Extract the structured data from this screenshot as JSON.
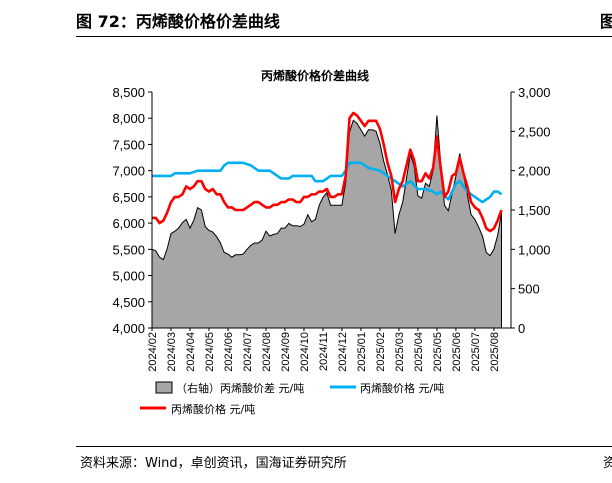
{
  "figure": {
    "header": "图 72：丙烯酸价格价差曲线",
    "right_mark": "图",
    "source": "资料来源：Wind，卓创资讯，国海证券研究所",
    "source_right": "资"
  },
  "chart_data": {
    "type": "line",
    "title": "丙烯酸价格价差曲线",
    "x_labels": [
      "2024/02",
      "2024/03",
      "2024/04",
      "2024/05",
      "2024/06",
      "2024/07",
      "2024/08",
      "2024/09",
      "2024/10",
      "2024/11",
      "2024/12",
      "2025/01",
      "2025/02",
      "2025/03",
      "2025/04",
      "2025/05",
      "2025/06",
      "2025/07",
      "2025/08"
    ],
    "x_range": [
      0,
      18.9
    ],
    "y_left": {
      "min": 4000,
      "max": 8500,
      "ticks": [
        "4,000",
        "4,500",
        "5,000",
        "5,500",
        "6,000",
        "6,500",
        "7,000",
        "7,500",
        "8,000",
        "8,500"
      ]
    },
    "y_right": {
      "min": 0,
      "max": 3000,
      "ticks": [
        "0",
        "500",
        "1,000",
        "1,500",
        "2,000",
        "2,500",
        "3,000"
      ]
    },
    "series": [
      {
        "name": "（右轴）丙烯酸价差 元/吨",
        "type": "area",
        "axis": "right",
        "color": "#a6a6a6",
        "points": [
          [
            0,
            1000
          ],
          [
            0.2,
            980
          ],
          [
            0.4,
            900
          ],
          [
            0.6,
            870
          ],
          [
            0.8,
            1010
          ],
          [
            1.0,
            1200
          ],
          [
            1.2,
            1230
          ],
          [
            1.4,
            1270
          ],
          [
            1.6,
            1340
          ],
          [
            1.8,
            1380
          ],
          [
            2.0,
            1270
          ],
          [
            2.2,
            1370
          ],
          [
            2.4,
            1530
          ],
          [
            2.6,
            1500
          ],
          [
            2.8,
            1290
          ],
          [
            3.0,
            1240
          ],
          [
            3.2,
            1220
          ],
          [
            3.4,
            1160
          ],
          [
            3.6,
            1080
          ],
          [
            3.8,
            960
          ],
          [
            4.0,
            940
          ],
          [
            4.2,
            900
          ],
          [
            4.4,
            930
          ],
          [
            4.6,
            930
          ],
          [
            4.8,
            940
          ],
          [
            5.0,
            1000
          ],
          [
            5.2,
            1050
          ],
          [
            5.4,
            1080
          ],
          [
            5.6,
            1080
          ],
          [
            5.8,
            1120
          ],
          [
            6.0,
            1230
          ],
          [
            6.2,
            1170
          ],
          [
            6.4,
            1190
          ],
          [
            6.6,
            1200
          ],
          [
            6.8,
            1270
          ],
          [
            7.0,
            1270
          ],
          [
            7.2,
            1330
          ],
          [
            7.4,
            1300
          ],
          [
            7.6,
            1300
          ],
          [
            7.8,
            1290
          ],
          [
            8.0,
            1320
          ],
          [
            8.2,
            1440
          ],
          [
            8.4,
            1350
          ],
          [
            8.6,
            1380
          ],
          [
            8.8,
            1560
          ],
          [
            9.0,
            1660
          ],
          [
            9.2,
            1720
          ],
          [
            9.4,
            1560
          ],
          [
            9.6,
            1560
          ],
          [
            9.8,
            1560
          ],
          [
            10.0,
            1560
          ],
          [
            10.2,
            1850
          ],
          [
            10.4,
            2490
          ],
          [
            10.6,
            2640
          ],
          [
            10.8,
            2600
          ],
          [
            11.0,
            2520
          ],
          [
            11.2,
            2440
          ],
          [
            11.4,
            2520
          ],
          [
            11.6,
            2520
          ],
          [
            11.8,
            2500
          ],
          [
            12.0,
            2350
          ],
          [
            12.2,
            2120
          ],
          [
            12.4,
            1950
          ],
          [
            12.6,
            1750
          ],
          [
            12.8,
            1200
          ],
          [
            13.0,
            1440
          ],
          [
            13.2,
            1600
          ],
          [
            13.4,
            1900
          ],
          [
            13.6,
            2210
          ],
          [
            13.8,
            2060
          ],
          [
            14.0,
            1680
          ],
          [
            14.2,
            1650
          ],
          [
            14.4,
            1840
          ],
          [
            14.6,
            1800
          ],
          [
            14.8,
            2000
          ],
          [
            15.0,
            2700
          ],
          [
            15.2,
            2100
          ],
          [
            15.4,
            1560
          ],
          [
            15.6,
            1490
          ],
          [
            15.8,
            1710
          ],
          [
            16.0,
            1930
          ],
          [
            16.2,
            2220
          ],
          [
            16.4,
            1950
          ],
          [
            16.6,
            1700
          ],
          [
            16.8,
            1440
          ],
          [
            17.0,
            1380
          ],
          [
            17.2,
            1280
          ],
          [
            17.4,
            1170
          ],
          [
            17.6,
            960
          ],
          [
            17.8,
            920
          ],
          [
            18.0,
            1000
          ],
          [
            18.2,
            1180
          ],
          [
            18.4,
            1470
          ]
        ]
      },
      {
        "name": "丙烯酸价格 元/吨",
        "type": "line",
        "axis": "left",
        "color": "#00b0f0",
        "points": [
          [
            0,
            6900
          ],
          [
            0.5,
            6900
          ],
          [
            1.0,
            6900
          ],
          [
            1.2,
            6950
          ],
          [
            2.0,
            6950
          ],
          [
            2.4,
            7000
          ],
          [
            3.0,
            7000
          ],
          [
            3.6,
            7000
          ],
          [
            3.8,
            7100
          ],
          [
            4.0,
            7150
          ],
          [
            4.8,
            7150
          ],
          [
            5.2,
            7100
          ],
          [
            5.6,
            7000
          ],
          [
            6.2,
            7000
          ],
          [
            6.4,
            6950
          ],
          [
            6.8,
            6850
          ],
          [
            7.2,
            6850
          ],
          [
            7.4,
            6900
          ],
          [
            8.0,
            6900
          ],
          [
            8.4,
            6900
          ],
          [
            8.6,
            6800
          ],
          [
            9.0,
            6800
          ],
          [
            9.4,
            6900
          ],
          [
            10.0,
            6900
          ],
          [
            10.2,
            7000
          ],
          [
            10.4,
            7150
          ],
          [
            11.0,
            7150
          ],
          [
            11.4,
            7050
          ],
          [
            12.0,
            7000
          ],
          [
            12.4,
            6900
          ],
          [
            12.8,
            6800
          ],
          [
            13.2,
            6700
          ],
          [
            13.6,
            6800
          ],
          [
            14.0,
            6650
          ],
          [
            14.4,
            6650
          ],
          [
            14.8,
            6600
          ],
          [
            15.0,
            6550
          ],
          [
            15.2,
            6600
          ],
          [
            15.6,
            6450
          ],
          [
            16.0,
            6750
          ],
          [
            16.2,
            6800
          ],
          [
            16.6,
            6600
          ],
          [
            17.0,
            6500
          ],
          [
            17.4,
            6400
          ],
          [
            17.6,
            6450
          ],
          [
            17.8,
            6500
          ],
          [
            18.0,
            6600
          ],
          [
            18.2,
            6600
          ],
          [
            18.4,
            6550
          ]
        ]
      },
      {
        "name": "丙烯酸价格 元/吨",
        "type": "line",
        "axis": "left",
        "color": "#ff0000",
        "points": [
          [
            0,
            6100
          ],
          [
            0.2,
            6100
          ],
          [
            0.4,
            6000
          ],
          [
            0.6,
            6050
          ],
          [
            0.8,
            6200
          ],
          [
            1.0,
            6400
          ],
          [
            1.2,
            6500
          ],
          [
            1.4,
            6500
          ],
          [
            1.6,
            6550
          ],
          [
            1.8,
            6700
          ],
          [
            2.0,
            6650
          ],
          [
            2.2,
            6700
          ],
          [
            2.4,
            6800
          ],
          [
            2.6,
            6800
          ],
          [
            2.8,
            6650
          ],
          [
            3.0,
            6600
          ],
          [
            3.2,
            6650
          ],
          [
            3.4,
            6550
          ],
          [
            3.6,
            6550
          ],
          [
            3.8,
            6400
          ],
          [
            4.0,
            6300
          ],
          [
            4.2,
            6300
          ],
          [
            4.4,
            6250
          ],
          [
            4.6,
            6250
          ],
          [
            4.8,
            6250
          ],
          [
            5.0,
            6300
          ],
          [
            5.2,
            6350
          ],
          [
            5.4,
            6400
          ],
          [
            5.6,
            6400
          ],
          [
            5.8,
            6350
          ],
          [
            6.0,
            6300
          ],
          [
            6.2,
            6300
          ],
          [
            6.4,
            6350
          ],
          [
            6.6,
            6350
          ],
          [
            6.8,
            6400
          ],
          [
            7.0,
            6400
          ],
          [
            7.2,
            6450
          ],
          [
            7.4,
            6450
          ],
          [
            7.6,
            6400
          ],
          [
            7.8,
            6400
          ],
          [
            8.0,
            6500
          ],
          [
            8.2,
            6500
          ],
          [
            8.4,
            6550
          ],
          [
            8.6,
            6550
          ],
          [
            8.8,
            6600
          ],
          [
            9.0,
            6600
          ],
          [
            9.2,
            6650
          ],
          [
            9.4,
            6500
          ],
          [
            9.6,
            6500
          ],
          [
            9.8,
            6550
          ],
          [
            10.0,
            6550
          ],
          [
            10.2,
            6900
          ],
          [
            10.4,
            8000
          ],
          [
            10.6,
            8100
          ],
          [
            10.8,
            8050
          ],
          [
            11.0,
            7950
          ],
          [
            11.2,
            7850
          ],
          [
            11.4,
            7950
          ],
          [
            11.6,
            7950
          ],
          [
            11.8,
            7950
          ],
          [
            12.0,
            7800
          ],
          [
            12.2,
            7500
          ],
          [
            12.4,
            7150
          ],
          [
            12.6,
            6900
          ],
          [
            12.8,
            6400
          ],
          [
            13.0,
            6650
          ],
          [
            13.2,
            6800
          ],
          [
            13.4,
            7100
          ],
          [
            13.6,
            7400
          ],
          [
            13.8,
            7200
          ],
          [
            14.0,
            6800
          ],
          [
            14.2,
            6800
          ],
          [
            14.4,
            6950
          ],
          [
            14.6,
            6850
          ],
          [
            14.8,
            7050
          ],
          [
            15.0,
            7650
          ],
          [
            15.2,
            7050
          ],
          [
            15.4,
            6500
          ],
          [
            15.6,
            6600
          ],
          [
            15.8,
            6900
          ],
          [
            16.0,
            6950
          ],
          [
            16.2,
            7250
          ],
          [
            16.4,
            6950
          ],
          [
            16.6,
            6700
          ],
          [
            16.8,
            6400
          ],
          [
            17.0,
            6300
          ],
          [
            17.2,
            6250
          ],
          [
            17.4,
            6100
          ],
          [
            17.6,
            5900
          ],
          [
            17.8,
            5850
          ],
          [
            18.0,
            5900
          ],
          [
            18.2,
            6050
          ],
          [
            18.4,
            6250
          ]
        ]
      }
    ],
    "legend": [
      {
        "label": "（右轴）丙烯酸价差 元/吨",
        "kind": "box",
        "color": "#a6a6a6"
      },
      {
        "label": "丙烯酸价格 元/吨",
        "kind": "line",
        "color": "#00b0f0"
      },
      {
        "label": "丙烯酸价格 元/吨",
        "kind": "line",
        "color": "#ff0000"
      }
    ],
    "legend_position": "bottom",
    "grid": false
  }
}
